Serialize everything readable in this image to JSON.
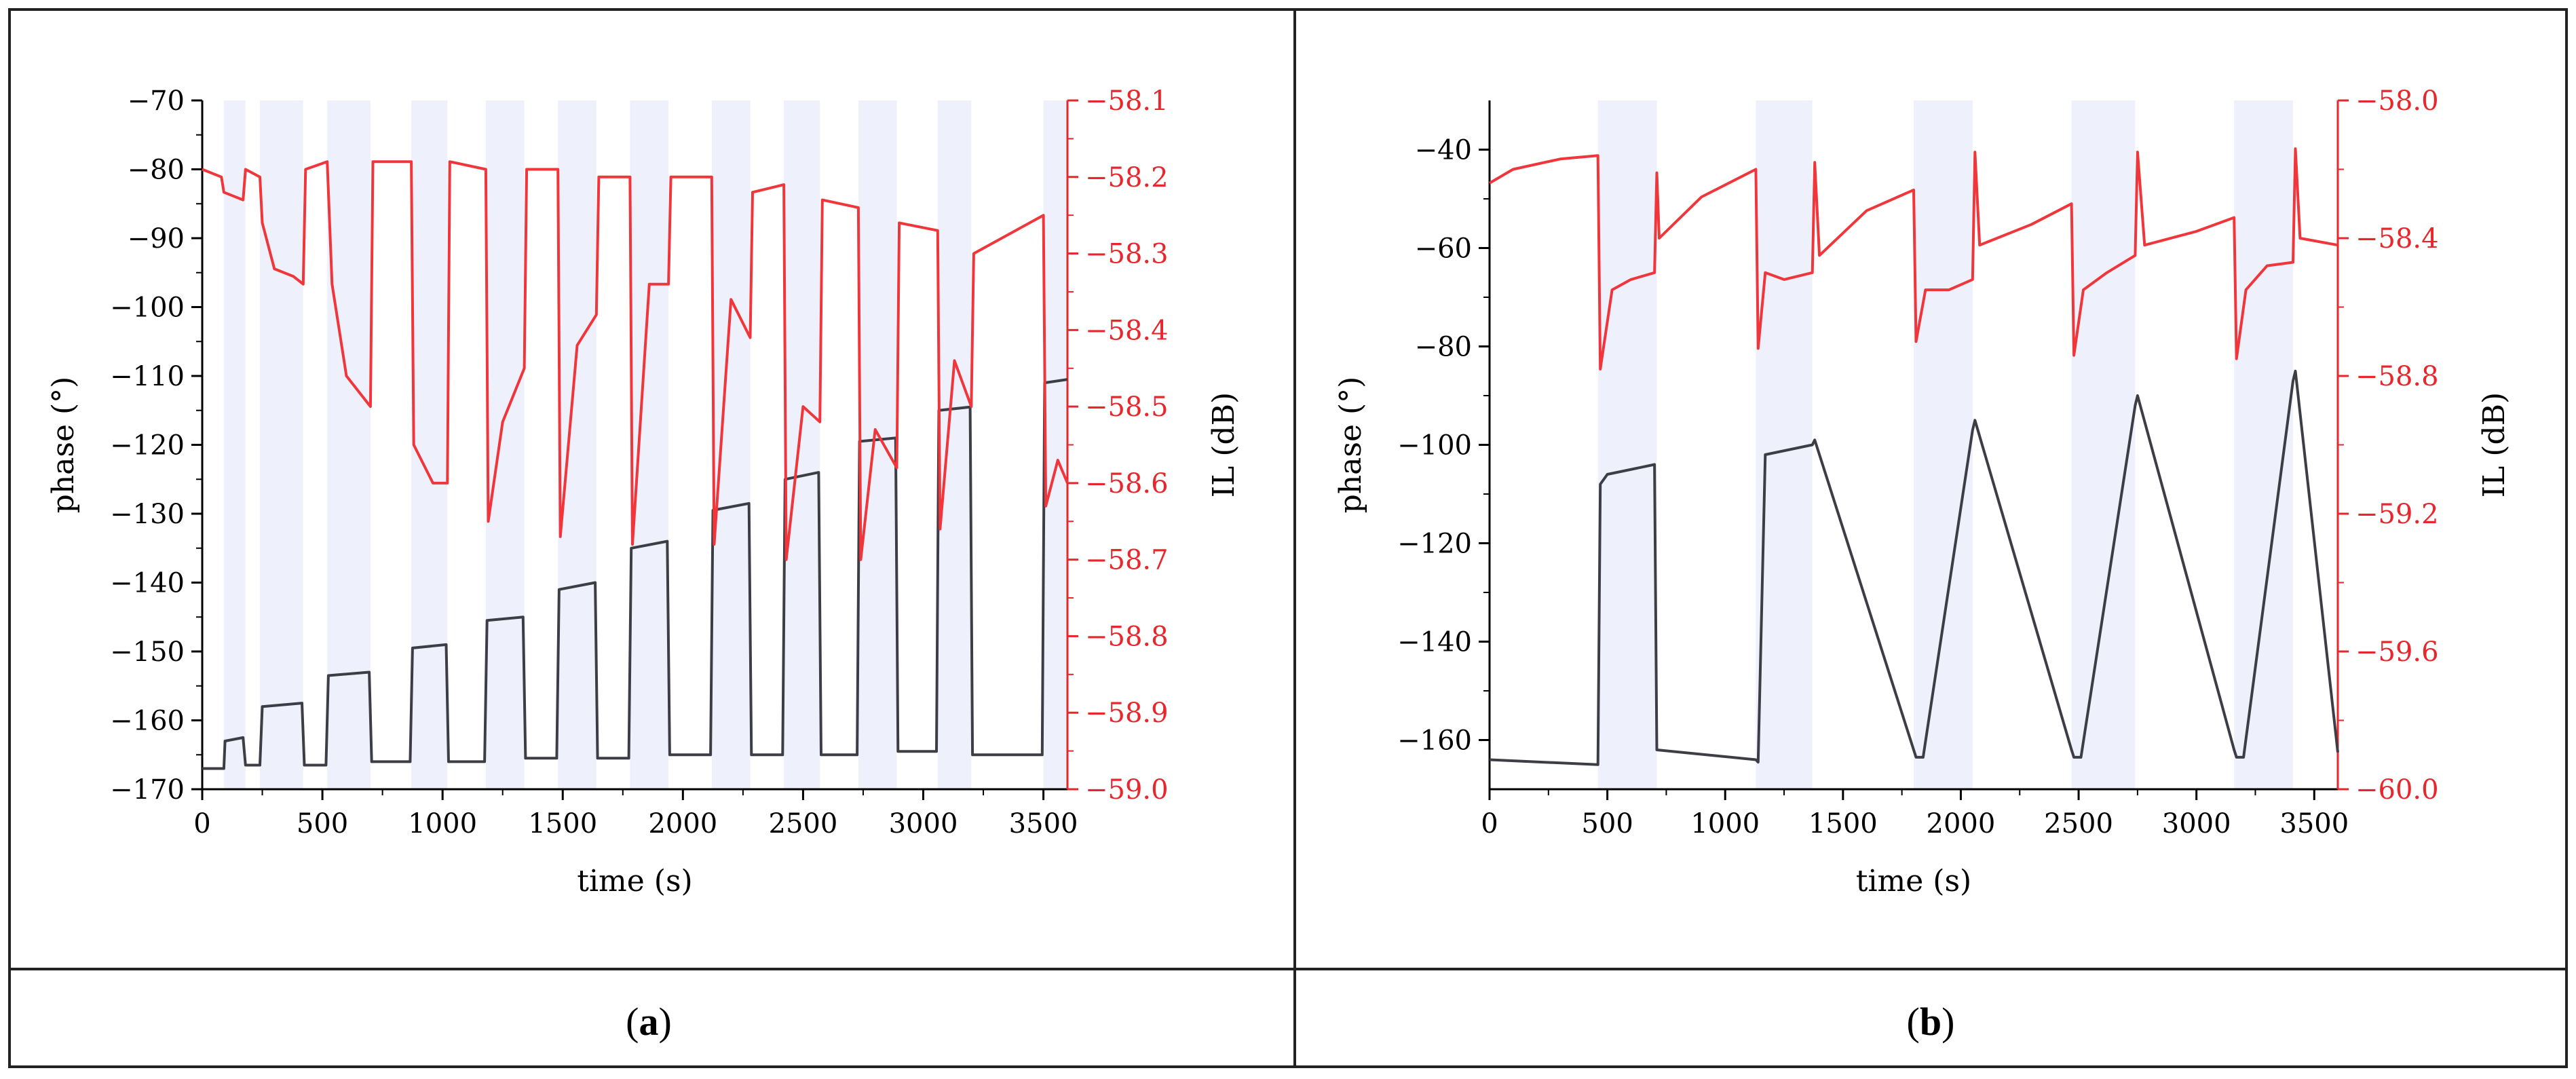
{
  "colors": {
    "phase": "#3d3d46",
    "il": "#f0363a",
    "il_axis": "#e8262b",
    "shade": "#eef0fb",
    "frame": "#222222"
  },
  "panels": [
    {
      "letter": "a"
    },
    {
      "letter": "b"
    }
  ],
  "chart_data": [
    {
      "id": "a",
      "type": "line",
      "xlabel": "time (s)",
      "ylabel_left": "phase (°)",
      "ylabel_right": "IL (dB)",
      "xlim": [
        0,
        3600
      ],
      "ylim_left": [
        -170,
        -70
      ],
      "ylim_right": [
        -59.0,
        -58.1
      ],
      "xticks": [
        0,
        500,
        1000,
        1500,
        2000,
        2500,
        3000,
        3500
      ],
      "yticks_left": [
        -70,
        -80,
        -90,
        -100,
        -110,
        -120,
        -130,
        -140,
        -150,
        -160,
        -170
      ],
      "yticks_right": [
        -58.1,
        -58.2,
        -58.3,
        -58.4,
        -58.5,
        -58.6,
        -58.7,
        -58.8,
        -58.9,
        -59.0
      ],
      "exposure_windows": [
        [
          90,
          180
        ],
        [
          240,
          420
        ],
        [
          520,
          700
        ],
        [
          870,
          1020
        ],
        [
          1180,
          1340
        ],
        [
          1480,
          1640
        ],
        [
          1780,
          1940
        ],
        [
          2120,
          2280
        ],
        [
          2420,
          2570
        ],
        [
          2730,
          2890
        ],
        [
          3060,
          3200
        ],
        [
          3500,
          3600
        ]
      ],
      "series": [
        {
          "name": "phase",
          "axis": "left",
          "x": [
            0,
            90,
            95,
            170,
            180,
            240,
            250,
            415,
            425,
            515,
            525,
            695,
            705,
            865,
            875,
            1015,
            1025,
            1175,
            1185,
            1335,
            1345,
            1475,
            1485,
            1635,
            1645,
            1775,
            1785,
            1935,
            1945,
            2115,
            2125,
            2275,
            2285,
            2415,
            2425,
            2565,
            2575,
            2725,
            2735,
            2885,
            2895,
            3055,
            3065,
            3195,
            3205,
            3495,
            3505,
            3600
          ],
          "y": [
            -167,
            -167,
            -163,
            -162.5,
            -166.5,
            -166.5,
            -158,
            -157.5,
            -166.5,
            -166.5,
            -153.5,
            -153,
            -166,
            -166,
            -149.5,
            -149,
            -166,
            -166,
            -145.5,
            -145,
            -165.5,
            -165.5,
            -141,
            -140,
            -165.5,
            -165.5,
            -135,
            -134,
            -165,
            -165,
            -129.5,
            -128.5,
            -165,
            -165,
            -125,
            -124,
            -165,
            -165,
            -119.5,
            -119,
            -164.5,
            -164.5,
            -115,
            -114.5,
            -165,
            -165,
            -111,
            -110.5
          ]
        },
        {
          "name": "IL",
          "axis": "right",
          "x": [
            0,
            80,
            90,
            170,
            180,
            240,
            250,
            300,
            380,
            420,
            430,
            520,
            540,
            600,
            700,
            710,
            870,
            880,
            960,
            1020,
            1030,
            1180,
            1190,
            1250,
            1340,
            1350,
            1480,
            1490,
            1560,
            1640,
            1650,
            1780,
            1790,
            1860,
            1940,
            1950,
            2120,
            2130,
            2200,
            2280,
            2290,
            2420,
            2430,
            2500,
            2570,
            2580,
            2730,
            2740,
            2800,
            2890,
            2900,
            3060,
            3070,
            3130,
            3200,
            3210,
            3500,
            3510,
            3560,
            3600
          ],
          "y": [
            -58.19,
            -58.2,
            -58.22,
            -58.23,
            -58.19,
            -58.2,
            -58.26,
            -58.32,
            -58.33,
            -58.34,
            -58.19,
            -58.18,
            -58.34,
            -58.46,
            -58.5,
            -58.18,
            -58.18,
            -58.55,
            -58.6,
            -58.6,
            -58.18,
            -58.19,
            -58.65,
            -58.52,
            -58.45,
            -58.19,
            -58.19,
            -58.67,
            -58.42,
            -58.38,
            -58.2,
            -58.2,
            -58.68,
            -58.34,
            -58.34,
            -58.2,
            -58.2,
            -58.68,
            -58.36,
            -58.41,
            -58.22,
            -58.21,
            -58.7,
            -58.5,
            -58.52,
            -58.23,
            -58.24,
            -58.7,
            -58.53,
            -58.58,
            -58.26,
            -58.27,
            -58.66,
            -58.44,
            -58.5,
            -58.3,
            -58.25,
            -58.63,
            -58.57,
            -58.6
          ]
        }
      ]
    },
    {
      "id": "b",
      "type": "line",
      "xlabel": "time (s)",
      "ylabel_left": "phase (°)",
      "ylabel_right": "IL (dB)",
      "xlim": [
        0,
        3600
      ],
      "ylim_left": [
        -170,
        -30
      ],
      "ylim_right": [
        -60.0,
        -58.0
      ],
      "xticks": [
        0,
        500,
        1000,
        1500,
        2000,
        2500,
        3000,
        3500
      ],
      "yticks_left": [
        -40,
        -60,
        -80,
        -100,
        -120,
        -140,
        -160
      ],
      "yticks_right": [
        -58.0,
        -58.4,
        -58.8,
        -59.2,
        -59.6,
        -60.0
      ],
      "exposure_windows": [
        [
          460,
          710
        ],
        [
          1130,
          1370
        ],
        [
          1800,
          2050
        ],
        [
          2470,
          2740
        ],
        [
          3160,
          3410
        ]
      ],
      "series": [
        {
          "name": "phase",
          "axis": "left",
          "x": [
            0,
            460,
            470,
            500,
            700,
            710,
            1130,
            1140,
            1170,
            1370,
            1380,
            1800,
            1810,
            1840,
            2050,
            2060,
            2470,
            2480,
            2510,
            2740,
            2750,
            3160,
            3170,
            3200,
            3410,
            3420,
            3600
          ],
          "y": [
            -164,
            -165,
            -108,
            -106,
            -104,
            -162,
            -164,
            -164.5,
            -102,
            -100,
            -99,
            -162,
            -163.5,
            -163.5,
            -97,
            -95,
            -162,
            -163.5,
            -163.5,
            -92,
            -90,
            -162,
            -163.5,
            -163.5,
            -87,
            -85,
            -162.5
          ]
        },
        {
          "name": "IL",
          "axis": "right",
          "x": [
            0,
            100,
            300,
            460,
            470,
            520,
            600,
            700,
            710,
            720,
            900,
            1130,
            1140,
            1170,
            1250,
            1370,
            1380,
            1400,
            1600,
            1800,
            1810,
            1850,
            1950,
            2050,
            2060,
            2080,
            2300,
            2470,
            2480,
            2520,
            2620,
            2740,
            2750,
            2780,
            3000,
            3160,
            3170,
            3210,
            3300,
            3410,
            3420,
            3440,
            3600
          ],
          "y": [
            -58.24,
            -58.2,
            -58.17,
            -58.16,
            -58.78,
            -58.55,
            -58.52,
            -58.5,
            -58.21,
            -58.4,
            -58.28,
            -58.2,
            -58.72,
            -58.5,
            -58.52,
            -58.5,
            -58.18,
            -58.45,
            -58.32,
            -58.26,
            -58.7,
            -58.55,
            -58.55,
            -58.52,
            -58.15,
            -58.42,
            -58.36,
            -58.3,
            -58.74,
            -58.55,
            -58.5,
            -58.45,
            -58.15,
            -58.42,
            -58.38,
            -58.34,
            -58.75,
            -58.55,
            -58.48,
            -58.47,
            -58.14,
            -58.4,
            -58.42
          ]
        }
      ]
    }
  ]
}
